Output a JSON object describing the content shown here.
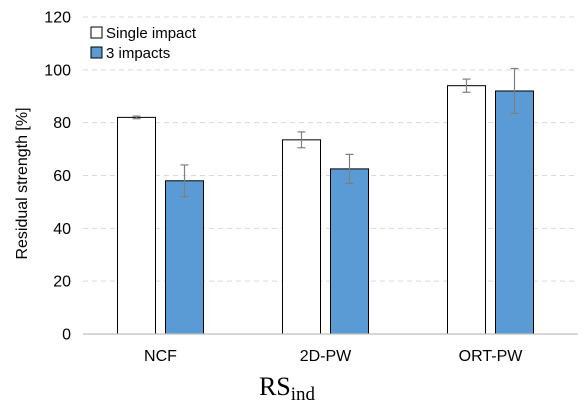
{
  "chart_data": {
    "type": "bar",
    "categories": [
      "NCF",
      "2D-PW",
      "ORT-PW"
    ],
    "series": [
      {
        "name": "Single impact",
        "color": "#ffffff",
        "values": [
          82,
          73.5,
          94
        ],
        "error": [
          0.5,
          3,
          2.5
        ]
      },
      {
        "name": "3 impacts",
        "color": "#5b9bd5",
        "values": [
          58,
          62.5,
          92
        ],
        "error": [
          6,
          5.5,
          8.5
        ]
      }
    ],
    "title": "",
    "xlabel": "",
    "ylabel": "Residual strength [%]",
    "ylim": [
      0,
      120
    ],
    "yticks": [
      0,
      20,
      40,
      60,
      80,
      100,
      120
    ],
    "grid": true,
    "legend_position": "top-left"
  },
  "caption": {
    "main": "RS",
    "subscript": "ind"
  }
}
